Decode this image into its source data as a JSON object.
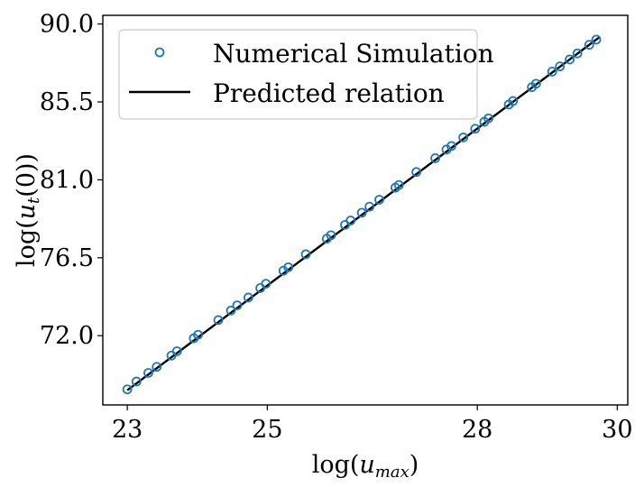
{
  "chart_data": {
    "type": "scatter",
    "title": "",
    "xlabel": "log(u_max)",
    "ylabel": "log(u_t(0))",
    "xlim": [
      22.65,
      30.15
    ],
    "ylim": [
      68.0,
      90.5
    ],
    "x_ticks": [
      23,
      25,
      28,
      30
    ],
    "x_tick_labels": [
      "23",
      "25",
      "28",
      "30"
    ],
    "y_ticks": [
      72.0,
      76.5,
      81.0,
      85.5,
      90.0
    ],
    "y_tick_labels": [
      "72.0",
      "76.5",
      "81.0",
      "85.5",
      "90.0"
    ],
    "legend_position": "top-left",
    "series": [
      {
        "name": "Numerical Simulation",
        "kind": "scatter",
        "marker": "open-circle",
        "color": "#1f77b4",
        "x": [
          23.0,
          23.13,
          23.3,
          23.42,
          23.63,
          23.71,
          23.95,
          24.01,
          24.3,
          24.48,
          24.57,
          24.73,
          24.9,
          24.98,
          25.23,
          25.3,
          25.55,
          25.85,
          25.91,
          26.11,
          26.19,
          26.35,
          26.46,
          26.6,
          26.83,
          26.88,
          27.13,
          27.4,
          27.56,
          27.63,
          27.8,
          27.97,
          28.1,
          28.16,
          28.45,
          28.51,
          28.78,
          28.84,
          29.07,
          29.18,
          29.32,
          29.43,
          29.6,
          29.7
        ],
        "y": [
          68.9,
          69.35,
          69.85,
          70.2,
          70.85,
          71.1,
          71.85,
          72.05,
          72.9,
          73.45,
          73.75,
          74.2,
          74.75,
          75.0,
          75.75,
          75.95,
          76.7,
          77.6,
          77.8,
          78.4,
          78.65,
          79.1,
          79.45,
          79.85,
          80.55,
          80.7,
          81.45,
          82.25,
          82.75,
          82.95,
          83.45,
          83.95,
          84.35,
          84.55,
          85.35,
          85.55,
          86.35,
          86.55,
          87.25,
          87.55,
          87.95,
          88.3,
          88.8,
          89.1
        ]
      },
      {
        "name": "Predicted relation",
        "kind": "line",
        "color": "#000000",
        "x": [
          23.0,
          29.75
        ],
        "y": [
          68.85,
          89.25
        ]
      }
    ]
  }
}
